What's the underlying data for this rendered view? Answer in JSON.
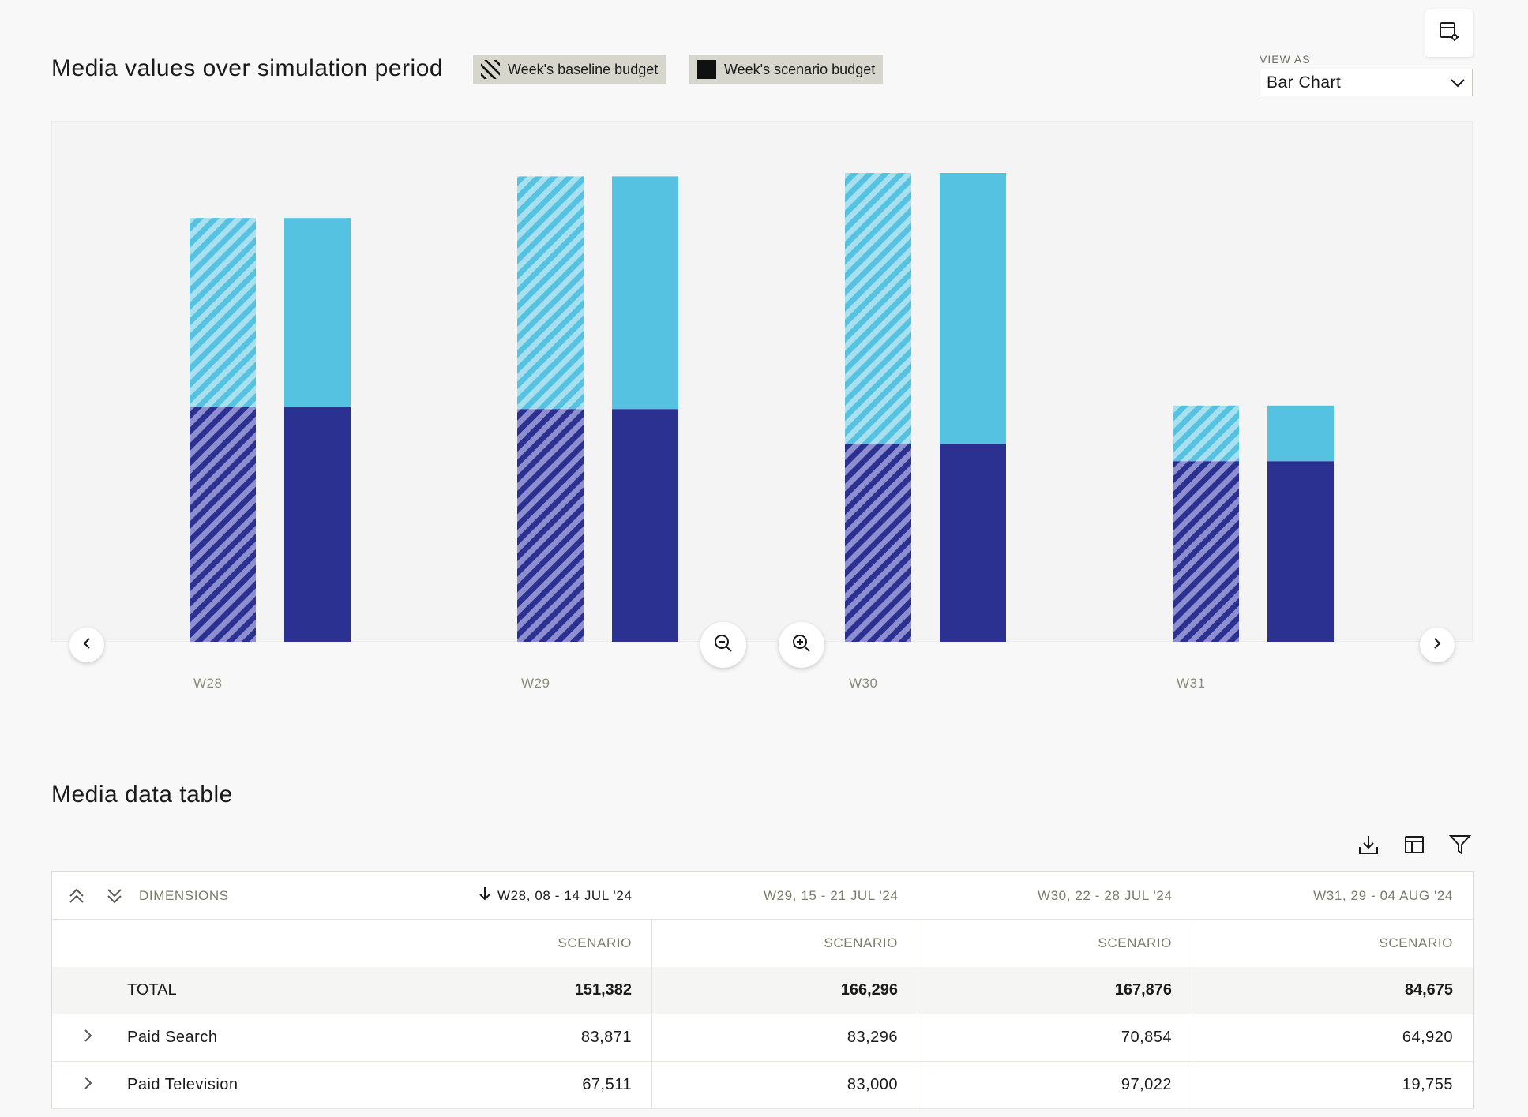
{
  "header": {
    "chart_title": "Media values over simulation period",
    "legend": [
      {
        "label": "Week's baseline budget",
        "pattern": "hatched"
      },
      {
        "label": "Week's scenario budget",
        "pattern": "solid"
      }
    ],
    "view_as_label": "VIEW AS",
    "view_as_value": "Bar Chart"
  },
  "colors": {
    "dark_segment": "#2b3190",
    "dark_hatch": "#8e8fd0",
    "light_segment": "#56c2e2",
    "light_hatch": "#a8e0f0",
    "legend_bg": "#d7d6cd"
  },
  "chart_data": {
    "type": "bar",
    "stacked": true,
    "categories": [
      "W28",
      "W29",
      "W30",
      "W31"
    ],
    "bars_per_category": [
      "baseline",
      "scenario"
    ],
    "series": [
      {
        "values": {
          "baseline": [
            67511,
            67000,
            57000,
            52000
          ],
          "scenario": [
            67511,
            67000,
            57000,
            52000
          ]
        }
      },
      {
        "values": {
          "baseline": [
            54500,
            67000,
            78000,
            16000
          ],
          "scenario": [
            54500,
            67000,
            78000,
            16000
          ]
        }
      }
    ],
    "ylim": [
      0,
      150000
    ],
    "grid": false,
    "legend_position": "top"
  },
  "chart_controls": {
    "zoom_out_icon": "zoom-out-icon",
    "zoom_in_icon": "zoom-in-icon",
    "prev_icon": "chevron-left-icon",
    "next_icon": "chevron-right-icon"
  },
  "table": {
    "title": "Media data table",
    "toolbar_icons": [
      "download-icon",
      "columns-icon",
      "filter-icon"
    ],
    "dimensions_label": "DIMENSIONS",
    "columns": [
      {
        "label": "W28, 08 - 14 JUL '24",
        "sorted": true
      },
      {
        "label": "W29, 15 - 21 JUL '24",
        "sorted": false
      },
      {
        "label": "W30, 22 - 28 JUL '24",
        "sorted": false
      },
      {
        "label": "W31, 29 - 04 AUG '24",
        "sorted": false
      }
    ],
    "sub_label": "SCENARIO",
    "total": {
      "label": "TOTAL",
      "values": [
        "151,382",
        "166,296",
        "167,876",
        "84,675"
      ]
    },
    "rows": [
      {
        "label": "Paid Search",
        "values": [
          "83,871",
          "83,296",
          "70,854",
          "64,920"
        ]
      },
      {
        "label": "Paid Television",
        "values": [
          "67,511",
          "83,000",
          "97,022",
          "19,755"
        ]
      }
    ]
  }
}
